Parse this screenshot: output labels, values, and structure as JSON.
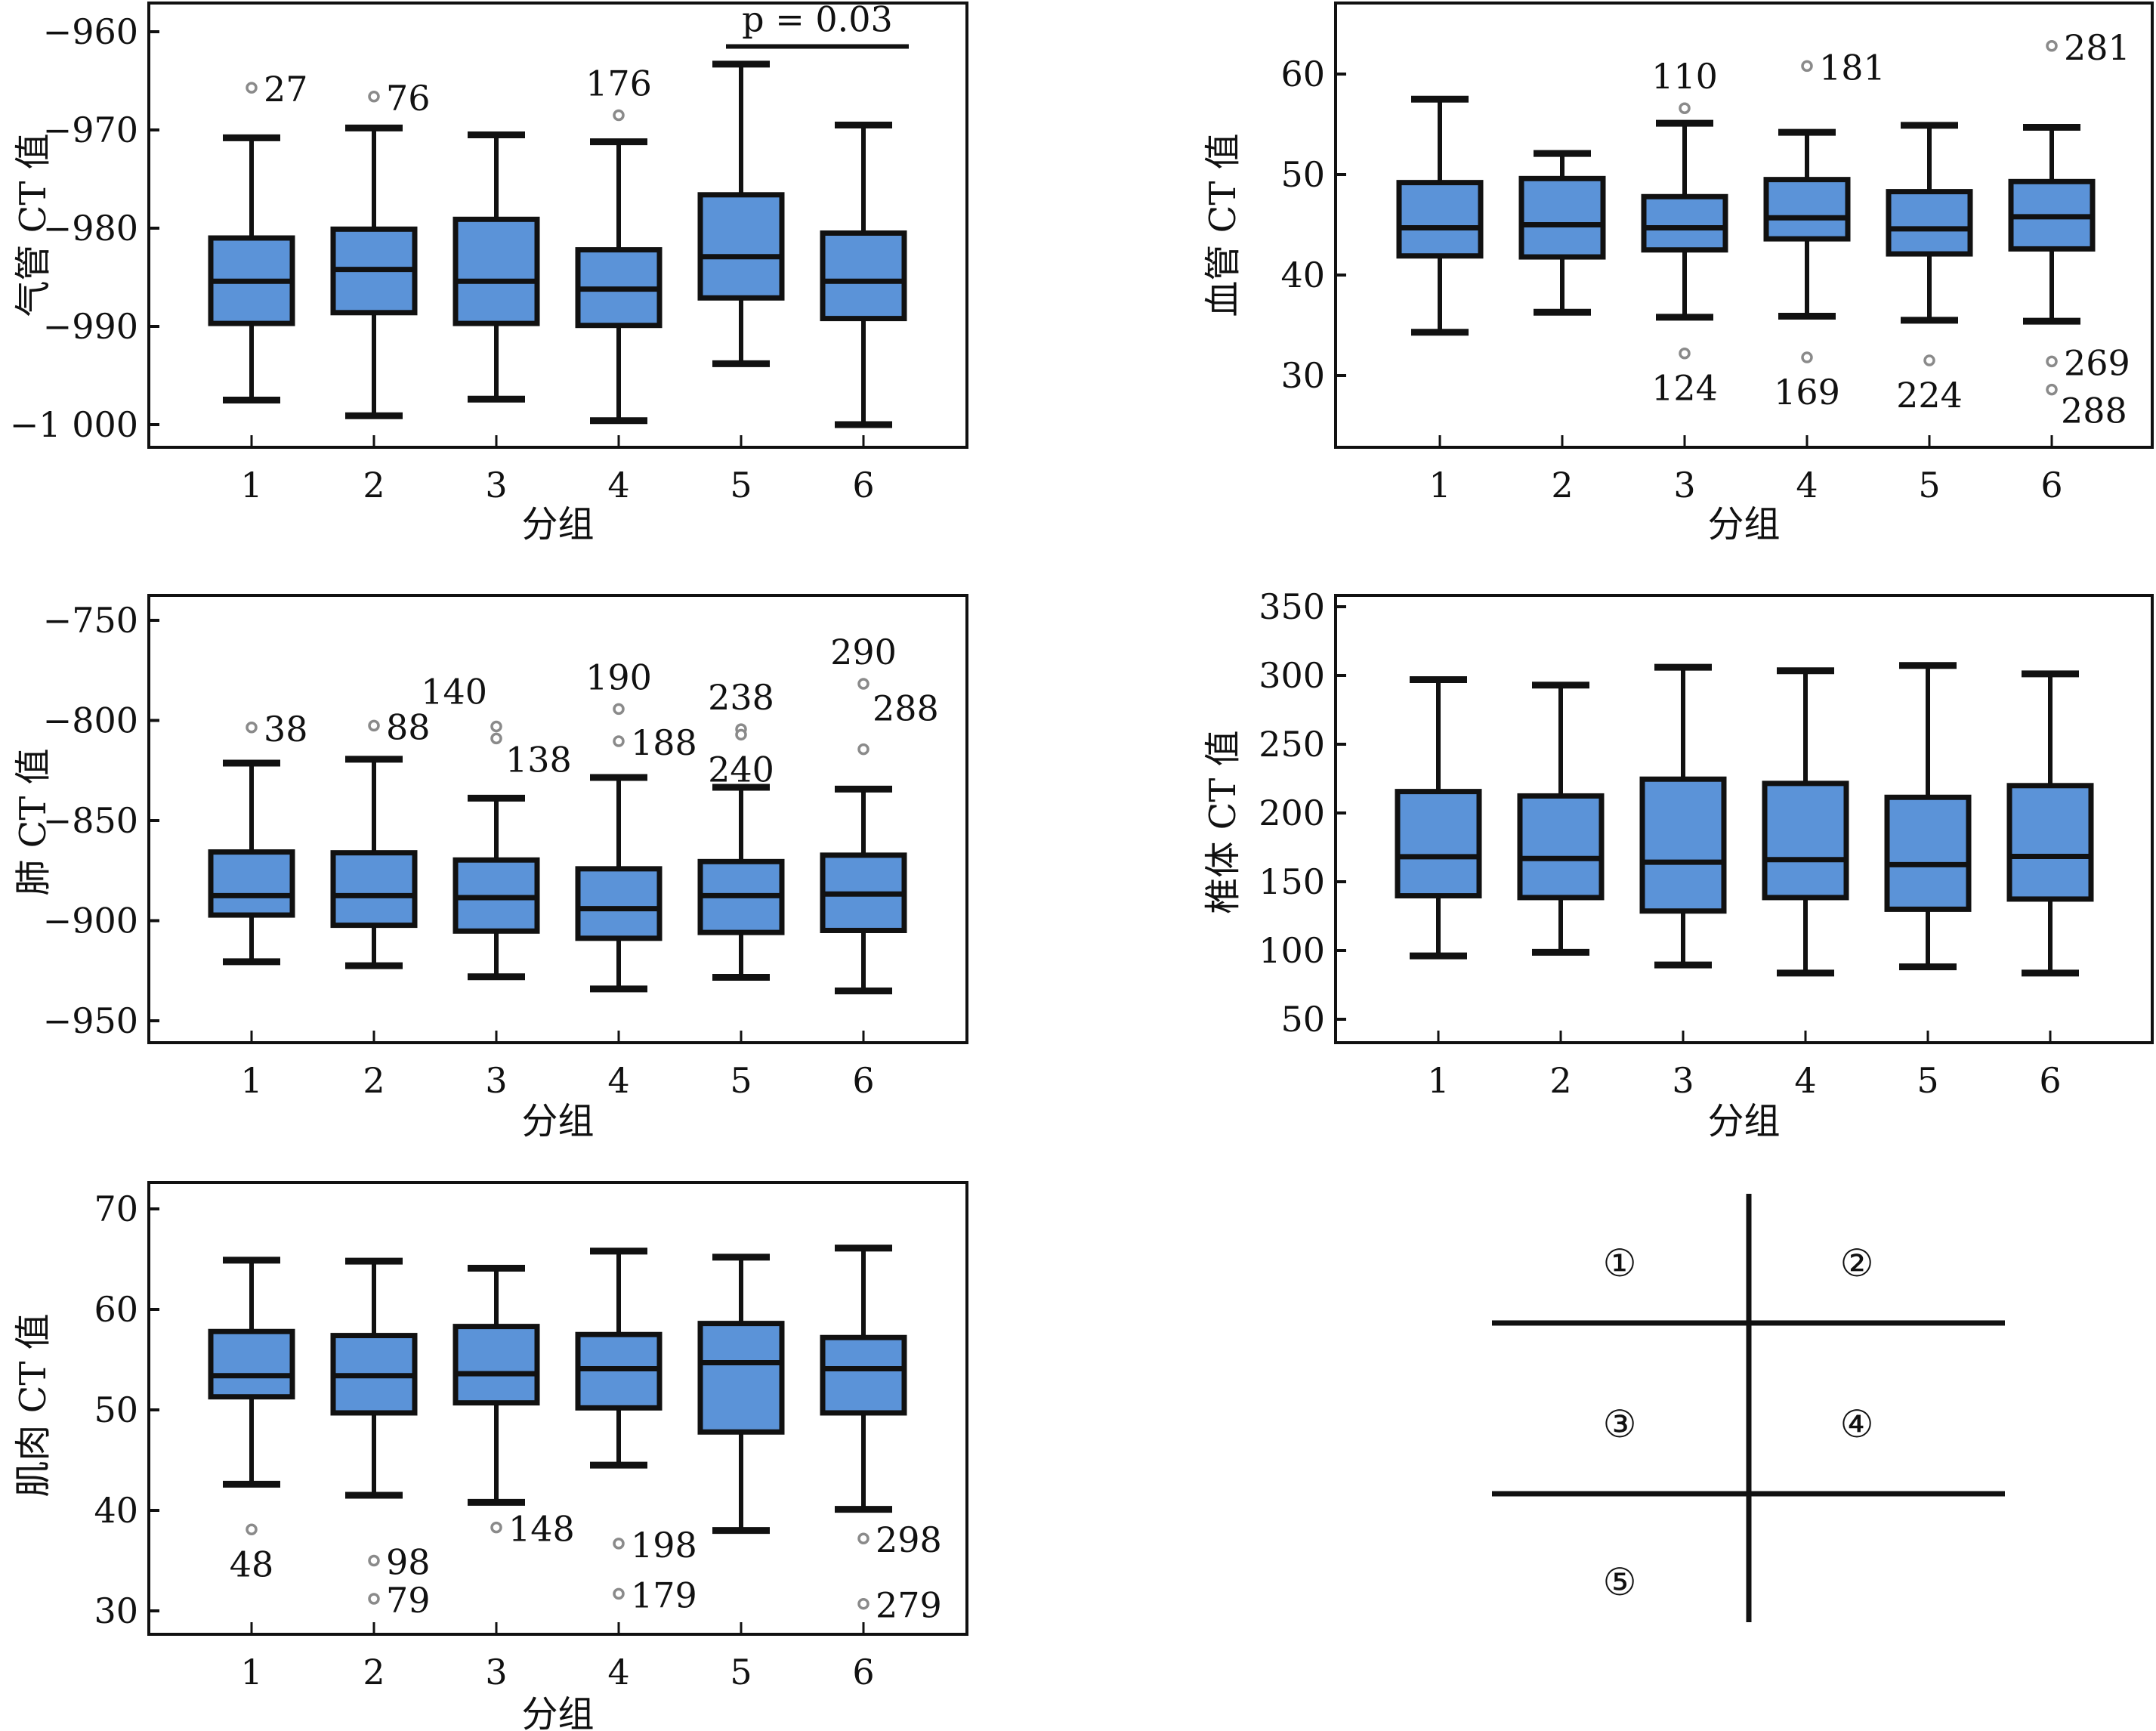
{
  "colors": {
    "box_fill": "#5b93d8",
    "box_stroke": "#111111",
    "outlier": "#8a8a8a",
    "axis": "#111111"
  },
  "chart_data": [
    {
      "type": "boxplot",
      "panel": "①",
      "title": "",
      "xlabel": "分组",
      "ylabel": "气管 CT 值",
      "categories": [
        "1",
        "2",
        "3",
        "4",
        "5",
        "6"
      ],
      "ylim": [
        -1004,
        -957
      ],
      "yticks": [
        -960,
        -970,
        -980,
        -990,
        -1000
      ],
      "ytick_labels": [
        "−960",
        "−970",
        "−980",
        "−990",
        "−1 000"
      ],
      "boxes": [
        {
          "group": "1",
          "whisker_low": -997.5,
          "q1": -989.7,
          "median": -985.4,
          "q3": -981.0,
          "whisker_high": -970.8
        },
        {
          "group": "2",
          "whisker_low": -999.1,
          "q1": -988.6,
          "median": -984.2,
          "q3": -980.1,
          "whisker_high": -969.8
        },
        {
          "group": "3",
          "whisker_low": -997.4,
          "q1": -989.7,
          "median": -985.4,
          "q3": -979.1,
          "whisker_high": -970.5
        },
        {
          "group": "4",
          "whisker_low": -999.6,
          "q1": -989.9,
          "median": -986.2,
          "q3": -982.2,
          "whisker_high": -971.2
        },
        {
          "group": "5",
          "whisker_low": -993.8,
          "q1": -987.1,
          "median": -982.9,
          "q3": -976.6,
          "whisker_high": -963.3
        },
        {
          "group": "6",
          "whisker_low": -1000.0,
          "q1": -989.2,
          "median": -985.4,
          "q3": -980.5,
          "whisker_high": -969.5
        }
      ],
      "outliers": [
        {
          "group": "1",
          "value": -965.7,
          "label": "27",
          "label_pos": "right"
        },
        {
          "group": "2",
          "value": -966.6,
          "label": "76",
          "label_pos": "right"
        },
        {
          "group": "4",
          "value": -968.5,
          "label": "176",
          "label_pos": "above"
        }
      ],
      "annotations": [
        {
          "text": "p = 0.03",
          "from_group": "5",
          "to_group": "6",
          "value": -961.5
        }
      ]
    },
    {
      "type": "boxplot",
      "panel": "②",
      "title": "",
      "xlabel": "分组",
      "ylabel": "血管 CT 值",
      "categories": [
        "1",
        "2",
        "3",
        "4",
        "5",
        "6"
      ],
      "ylim": [
        23.2,
        67.2
      ],
      "yticks": [
        60,
        50,
        40,
        30
      ],
      "ytick_labels": [
        "60",
        "50",
        "40",
        "30"
      ],
      "boxes": [
        {
          "group": "1",
          "whisker_low": 34.3,
          "q1": 41.9,
          "median": 44.7,
          "q3": 49.2,
          "whisker_high": 57.5
        },
        {
          "group": "2",
          "whisker_low": 36.3,
          "q1": 41.8,
          "median": 45.0,
          "q3": 49.6,
          "whisker_high": 52.1
        },
        {
          "group": "3",
          "whisker_low": 35.8,
          "q1": 42.5,
          "median": 44.7,
          "q3": 47.8,
          "whisker_high": 55.1
        },
        {
          "group": "4",
          "whisker_low": 35.9,
          "q1": 43.6,
          "median": 45.7,
          "q3": 49.5,
          "whisker_high": 54.2
        },
        {
          "group": "5",
          "whisker_low": 35.5,
          "q1": 42.1,
          "median": 44.6,
          "q3": 48.3,
          "whisker_high": 54.9
        },
        {
          "group": "6",
          "whisker_low": 35.4,
          "q1": 42.6,
          "median": 45.8,
          "q3": 49.3,
          "whisker_high": 54.7
        }
      ],
      "outliers": [
        {
          "group": "3",
          "value": 56.6,
          "label": "110",
          "label_pos": "above"
        },
        {
          "group": "3",
          "value": 32.2,
          "label": "124",
          "label_pos": "below"
        },
        {
          "group": "4",
          "value": 60.8,
          "label": "181",
          "label_pos": "right"
        },
        {
          "group": "4",
          "value": 31.8,
          "label": "169",
          "label_pos": "below"
        },
        {
          "group": "5",
          "value": 31.5,
          "label": "224",
          "label_pos": "below"
        },
        {
          "group": "6",
          "value": 62.8,
          "label": "281",
          "label_pos": "right"
        },
        {
          "group": "6",
          "value": 31.4,
          "label": "269",
          "label_pos": "right"
        },
        {
          "group": "6",
          "value": 28.6,
          "label": "288",
          "label_pos": "right-below"
        }
      ],
      "annotations": []
    },
    {
      "type": "boxplot",
      "panel": "③",
      "title": "",
      "xlabel": "分组",
      "ylabel": "肺 CT 值",
      "categories": [
        "1",
        "2",
        "3",
        "4",
        "5",
        "6"
      ],
      "ylim": [
        -961,
        -738
      ],
      "yticks": [
        -750,
        -800,
        -850,
        -900,
        -950
      ],
      "ytick_labels": [
        "−750",
        "−800",
        "−850",
        "−900",
        "−950"
      ],
      "boxes": [
        {
          "group": "1",
          "whisker_low": -920.5,
          "q1": -897.2,
          "median": -887.5,
          "q3": -865.7,
          "whisker_high": -821.3
        },
        {
          "group": "2",
          "whisker_low": -922.5,
          "q1": -902.3,
          "median": -887.5,
          "q3": -866.1,
          "whisker_high": -819.4
        },
        {
          "group": "3",
          "whisker_low": -928.0,
          "q1": -905.2,
          "median": -888.5,
          "q3": -869.7,
          "whisker_high": -838.8
        },
        {
          "group": "4",
          "whisker_low": -934.1,
          "q1": -908.8,
          "median": -894.0,
          "q3": -874.1,
          "whisker_high": -828.5
        },
        {
          "group": "5",
          "whisker_low": -928.3,
          "q1": -905.9,
          "median": -887.5,
          "q3": -870.5,
          "whisker_high": -833.4
        },
        {
          "group": "6",
          "whisker_low": -935.1,
          "q1": -904.9,
          "median": -886.7,
          "q3": -867.3,
          "whisker_high": -834.3
        }
      ],
      "outliers": [
        {
          "group": "1",
          "value": -803.5,
          "label": "38",
          "label_pos": "right"
        },
        {
          "group": "2",
          "value": -802.6,
          "label": "88",
          "label_pos": "right"
        },
        {
          "group": "3",
          "value": -803.0,
          "label": "140",
          "label_pos": "above-left"
        },
        {
          "group": "3",
          "value": -809.0,
          "label": "138",
          "label_pos": "right-below"
        },
        {
          "group": "4",
          "value": -794.3,
          "label": "190",
          "label_pos": "above"
        },
        {
          "group": "4",
          "value": -810.4,
          "label": "188",
          "label_pos": "right"
        },
        {
          "group": "5",
          "value": -804.4,
          "label": "238",
          "label_pos": "above"
        },
        {
          "group": "5",
          "value": -807.1,
          "label": "240",
          "label_pos": "below"
        },
        {
          "group": "6",
          "value": -781.7,
          "label": "290",
          "label_pos": "above"
        },
        {
          "group": "6",
          "value": -814.4,
          "label": "288",
          "label_pos": "above-right"
        }
      ],
      "annotations": []
    },
    {
      "type": "boxplot",
      "panel": "④",
      "title": "",
      "xlabel": "分组",
      "ylabel": "椎体 CT 值",
      "categories": [
        "1",
        "2",
        "3",
        "4",
        "5",
        "6"
      ],
      "ylim": [
        34,
        360
      ],
      "yticks": [
        350,
        300,
        250,
        200,
        150,
        100,
        50
      ],
      "ytick_labels": [
        "350",
        "300",
        "250",
        "200",
        "150",
        "100",
        "50"
      ],
      "boxes": [
        {
          "group": "1",
          "whisker_low": 96.1,
          "q1": 139.8,
          "median": 168.2,
          "q3": 215.6,
          "whisker_high": 297.0
        },
        {
          "group": "2",
          "whisker_low": 98.7,
          "q1": 138.5,
          "median": 166.9,
          "q3": 212.4,
          "whisker_high": 293.0
        },
        {
          "group": "3",
          "whisker_low": 89.5,
          "q1": 128.7,
          "median": 164.2,
          "q3": 224.6,
          "whisker_high": 306.0
        },
        {
          "group": "4",
          "whisker_low": 83.6,
          "q1": 138.5,
          "median": 166.1,
          "q3": 221.5,
          "whisker_high": 303.4
        },
        {
          "group": "5",
          "whisker_low": 88.1,
          "q1": 130.0,
          "median": 162.4,
          "q3": 211.4,
          "whisker_high": 307.3
        },
        {
          "group": "6",
          "whisker_low": 83.6,
          "q1": 137.4,
          "median": 168.4,
          "q3": 219.9,
          "whisker_high": 301.2
        }
      ],
      "outliers": [],
      "annotations": []
    },
    {
      "type": "boxplot",
      "panel": "⑤",
      "title": "",
      "xlabel": "分组",
      "ylabel": "肌肉 CT 值",
      "categories": [
        "1",
        "2",
        "3",
        "4",
        "5",
        "6"
      ],
      "ylim": [
        27.8,
        72.4
      ],
      "yticks": [
        70,
        60,
        50,
        40,
        30
      ],
      "ytick_labels": [
        "70",
        "60",
        "50",
        "40",
        "30"
      ],
      "boxes": [
        {
          "group": "1",
          "whisker_low": 42.6,
          "q1": 51.3,
          "median": 53.4,
          "q3": 57.8,
          "whisker_high": 64.9
        },
        {
          "group": "2",
          "whisker_low": 41.5,
          "q1": 49.7,
          "median": 53.4,
          "q3": 57.4,
          "whisker_high": 64.8
        },
        {
          "group": "3",
          "whisker_low": 40.8,
          "q1": 50.7,
          "median": 53.6,
          "q3": 58.3,
          "whisker_high": 64.1
        },
        {
          "group": "4",
          "whisker_low": 44.5,
          "q1": 50.2,
          "median": 54.1,
          "q3": 57.5,
          "whisker_high": 65.8
        },
        {
          "group": "5",
          "whisker_low": 38.0,
          "q1": 47.8,
          "median": 54.7,
          "q3": 58.6,
          "whisker_high": 65.2
        },
        {
          "group": "6",
          "whisker_low": 40.1,
          "q1": 49.7,
          "median": 54.1,
          "q3": 57.2,
          "whisker_high": 66.1
        }
      ],
      "outliers": [
        {
          "group": "1",
          "value": 38.1,
          "label": "48",
          "label_pos": "below"
        },
        {
          "group": "2",
          "value": 35.0,
          "label": "98",
          "label_pos": "right"
        },
        {
          "group": "2",
          "value": 31.2,
          "label": "79",
          "label_pos": "right"
        },
        {
          "group": "3",
          "value": 38.3,
          "label": "148",
          "label_pos": "right"
        },
        {
          "group": "4",
          "value": 36.7,
          "label": "198",
          "label_pos": "right"
        },
        {
          "group": "4",
          "value": 31.7,
          "label": "179",
          "label_pos": "right"
        },
        {
          "group": "6",
          "value": 37.2,
          "label": "298",
          "label_pos": "right"
        },
        {
          "group": "6",
          "value": 30.7,
          "label": "279",
          "label_pos": "right"
        }
      ],
      "annotations": []
    }
  ],
  "panel_key": {
    "labels": [
      "①",
      "②",
      "③",
      "④",
      "⑤"
    ]
  }
}
